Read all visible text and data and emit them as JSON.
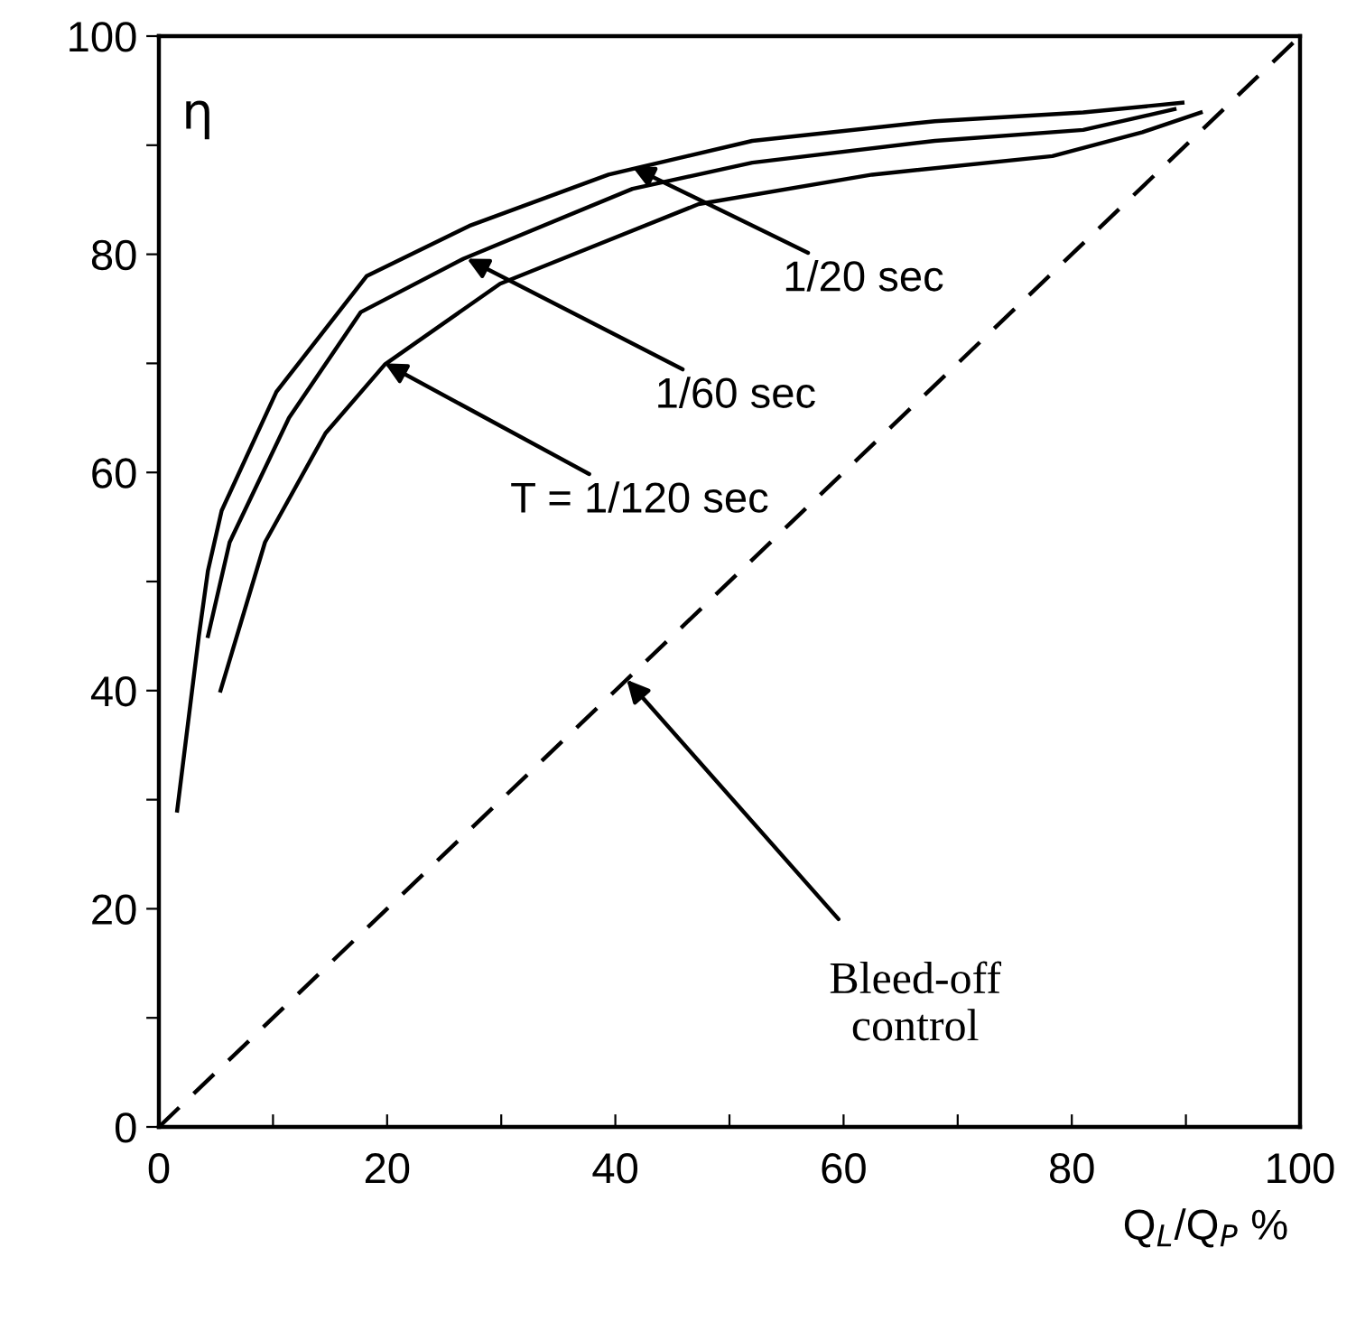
{
  "chart_data": {
    "type": "line",
    "ylabel": "η",
    "xlabel": "Q$_{L}$/Q$_{P}$ %",
    "xlim": [
      0,
      100
    ],
    "ylim": [
      0,
      100
    ],
    "xticks": [
      0,
      {
        "value": 10,
        "label": null
      },
      20,
      {
        "value": 30,
        "label": null
      },
      40,
      {
        "value": 50,
        "label": null
      },
      60,
      {
        "value": 70,
        "label": null
      },
      80,
      {
        "value": 90,
        "label": null
      },
      100
    ],
    "yticks": [
      0,
      {
        "value": 10,
        "label": null
      },
      20,
      {
        "value": 30,
        "label": null
      },
      40,
      {
        "value": 50,
        "label": null
      },
      60,
      {
        "value": 70,
        "label": null
      },
      80,
      {
        "value": 90,
        "label": null
      },
      100
    ],
    "grid": false,
    "legend": false,
    "marker": "none",
    "series": [
      {
        "color": "#000000",
        "line_style": "solid",
        "x": [
          1.6,
          3.5,
          4.3,
          5.5,
          10.3,
          18.2,
          27.2,
          39.4,
          52,
          68,
          81,
          89.7
        ],
        "values": [
          29,
          45,
          51,
          56.5,
          67.4,
          78,
          82.6,
          87.3,
          90.4,
          92.2,
          93,
          93.9
        ]
      },
      {
        "color": "#000000",
        "line_style": "solid",
        "x": [
          4.3,
          6.2,
          11.4,
          17.7,
          26.7,
          41.5,
          52,
          68,
          81,
          89
        ],
        "values": [
          45,
          53.6,
          65,
          74.7,
          79.6,
          86,
          88.4,
          90.4,
          91.4,
          93.3
        ]
      },
      {
        "color": "#000000",
        "line_style": "solid",
        "x": [
          5.4,
          9.3,
          14.6,
          19.8,
          29.9,
          47.3,
          62.5,
          78.3,
          86.2,
          91.3
        ],
        "values": [
          40,
          53.6,
          63.6,
          69.9,
          77.3,
          84.6,
          87.3,
          89,
          91.2,
          93
        ]
      },
      {
        "color": "#000000",
        "line_style": "dashed",
        "x": [
          0,
          100
        ],
        "values": [
          0,
          100
        ]
      }
    ],
    "annotations": [
      {
        "text": "1/20 sec",
        "x": 41.5,
        "y": 88
      },
      {
        "text": "1/60 sec",
        "x": 27,
        "y": 79.6
      },
      {
        "text": "T = 1/120 sec",
        "x": 19.8,
        "y": 70
      },
      {
        "text": "Bleed-off\ncontrol",
        "x": 41,
        "y": 41
      }
    ]
  }
}
